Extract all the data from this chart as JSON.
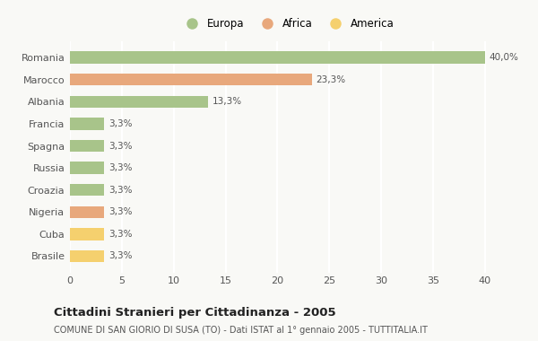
{
  "categories": [
    "Brasile",
    "Cuba",
    "Nigeria",
    "Croazia",
    "Russia",
    "Spagna",
    "Francia",
    "Albania",
    "Marocco",
    "Romania"
  ],
  "values": [
    3.3,
    3.3,
    3.3,
    3.3,
    3.3,
    3.3,
    3.3,
    13.3,
    23.3,
    40.0
  ],
  "colors": [
    "#f5d06e",
    "#f5d06e",
    "#e8a87c",
    "#a8c48a",
    "#a8c48a",
    "#a8c48a",
    "#a8c48a",
    "#a8c48a",
    "#e8a87c",
    "#a8c48a"
  ],
  "labels": [
    "3,3%",
    "3,3%",
    "3,3%",
    "3,3%",
    "3,3%",
    "3,3%",
    "3,3%",
    "13,3%",
    "23,3%",
    "40,0%"
  ],
  "legend": [
    {
      "label": "Europa",
      "color": "#a8c48a"
    },
    {
      "label": "Africa",
      "color": "#e8a87c"
    },
    {
      "label": "America",
      "color": "#f5d06e"
    }
  ],
  "xlim": [
    0,
    42
  ],
  "xticks": [
    0,
    5,
    10,
    15,
    20,
    25,
    30,
    35,
    40
  ],
  "title": "Cittadini Stranieri per Cittadinanza - 2005",
  "subtitle": "COMUNE DI SAN GIORIO DI SUSA (TO) - Dati ISTAT al 1° gennaio 2005 - TUTTITALIA.IT",
  "background_color": "#f9f9f6",
  "bar_height": 0.55,
  "grid_color": "#ffffff",
  "text_color": "#555555"
}
